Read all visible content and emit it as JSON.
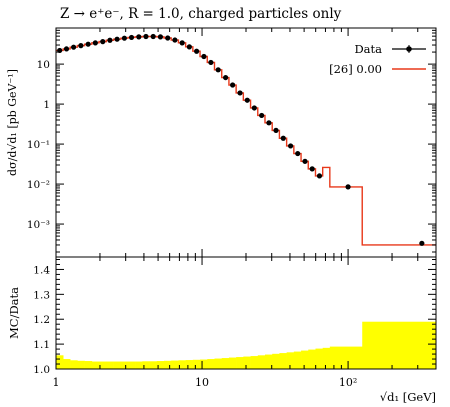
{
  "title": "Z → e⁺e⁻, R = 1.0, charged particles only",
  "colors": {
    "data": "#000000",
    "mc": "#e8381a",
    "band": "#ffff00"
  },
  "chart_data": [
    {
      "type": "line",
      "ylabel": "dσ/d√d₁ [pb GeV⁻¹]",
      "xscale": "log",
      "yscale": "log",
      "xlim": [
        1,
        400
      ],
      "ylim": [
        0.00015,
        80
      ],
      "x_ticklabels": [
        "1",
        "10",
        "10²"
      ],
      "y_ticklabels": [
        "10⁻³",
        "10⁻²",
        "10⁻¹",
        "1",
        "10"
      ],
      "legend": {
        "position": "top-right",
        "entries": [
          {
            "label": "Data"
          },
          {
            "label": "[26] 0.00"
          }
        ]
      },
      "series": [
        {
          "name": "Data",
          "kind": "points",
          "x": [
            1.06,
            1.18,
            1.32,
            1.48,
            1.66,
            1.86,
            2.09,
            2.34,
            2.62,
            2.94,
            3.29,
            3.69,
            4.13,
            4.63,
            5.19,
            5.82,
            6.52,
            7.31,
            8.19,
            9.18,
            10.3,
            11.5,
            12.9,
            14.5,
            16.2,
            18.2,
            20.4,
            22.8,
            25.6,
            28.7,
            32.1,
            36.0,
            40.4,
            45.2,
            50.7,
            56.8,
            63.7,
            100,
            320
          ],
          "y": [
            22,
            24,
            26.5,
            29,
            31.5,
            34,
            36.5,
            39.5,
            42,
            44.5,
            46.5,
            48,
            49,
            49,
            48,
            45,
            40,
            34,
            27,
            21,
            15.5,
            11,
            7.2,
            4.6,
            3.0,
            1.9,
            1.25,
            0.8,
            0.52,
            0.34,
            0.22,
            0.14,
            0.09,
            0.058,
            0.037,
            0.024,
            0.016,
            0.0085,
            0.00033
          ]
        },
        {
          "name": "[26] 0.00",
          "kind": "histogram",
          "edges": [
            1,
            1.12,
            1.25,
            1.4,
            1.57,
            1.76,
            1.97,
            2.21,
            2.48,
            2.78,
            3.11,
            3.48,
            3.9,
            4.37,
            4.9,
            5.49,
            6.15,
            6.89,
            7.72,
            8.65,
            9.69,
            10.86,
            12.17,
            13.64,
            15.28,
            17.12,
            19.18,
            21.49,
            24.08,
            26.98,
            30.23,
            33.87,
            37.95,
            42.52,
            47.64,
            53.38,
            59.81,
            67.01,
            75,
            125,
            400
          ],
          "values": [
            22,
            24,
            26.5,
            29,
            31.5,
            34,
            36.5,
            39.5,
            42,
            44.5,
            46.5,
            48,
            49,
            49,
            48,
            45,
            40,
            34,
            27,
            21,
            15.5,
            11,
            7.2,
            4.6,
            3.0,
            1.9,
            1.25,
            0.8,
            0.52,
            0.34,
            0.22,
            0.14,
            0.09,
            0.058,
            0.037,
            0.024,
            0.016,
            0.026,
            0.0085,
            0.0003
          ]
        }
      ]
    },
    {
      "type": "area",
      "ylabel": "MC/Data",
      "xlabel": "√d₁ [GeV]",
      "xscale": "log",
      "xlim": [
        1,
        400
      ],
      "ylim": [
        1.0,
        1.45
      ],
      "x_ticklabels": [
        "1",
        "10",
        "10²"
      ],
      "y_ticklabels": [
        "1.0",
        "1.1",
        "1.2",
        "1.3",
        "1.4"
      ],
      "band": {
        "edges": [
          1,
          1.12,
          1.25,
          1.4,
          1.57,
          1.76,
          1.97,
          2.21,
          2.48,
          2.78,
          3.11,
          3.48,
          3.9,
          4.37,
          4.9,
          5.49,
          6.15,
          6.89,
          7.72,
          8.65,
          9.69,
          10.86,
          12.17,
          13.64,
          15.28,
          17.12,
          19.18,
          21.49,
          24.08,
          26.98,
          30.23,
          33.87,
          37.95,
          42.52,
          47.64,
          53.38,
          59.81,
          67.01,
          75,
          125,
          400
        ],
        "low": [
          0.985,
          0.99,
          0.99,
          0.99,
          0.99,
          0.99,
          0.99,
          0.99,
          0.99,
          0.99,
          0.99,
          0.99,
          0.99,
          0.99,
          0.99,
          0.99,
          0.99,
          0.99,
          0.99,
          0.99,
          0.99,
          0.99,
          0.99,
          0.99,
          0.99,
          0.99,
          0.99,
          0.99,
          0.99,
          0.99,
          0.99,
          0.99,
          0.99,
          0.99,
          0.99,
          0.99,
          0.99,
          0.99,
          0.985,
          0.98
        ],
        "high": [
          1.055,
          1.04,
          1.035,
          1.033,
          1.032,
          1.03,
          1.03,
          1.03,
          1.03,
          1.03,
          1.03,
          1.03,
          1.031,
          1.031,
          1.032,
          1.033,
          1.034,
          1.035,
          1.036,
          1.037,
          1.038,
          1.04,
          1.042,
          1.044,
          1.046,
          1.048,
          1.05,
          1.052,
          1.055,
          1.058,
          1.061,
          1.064,
          1.067,
          1.07,
          1.074,
          1.078,
          1.082,
          1.085,
          1.09,
          1.19
        ]
      }
    }
  ]
}
